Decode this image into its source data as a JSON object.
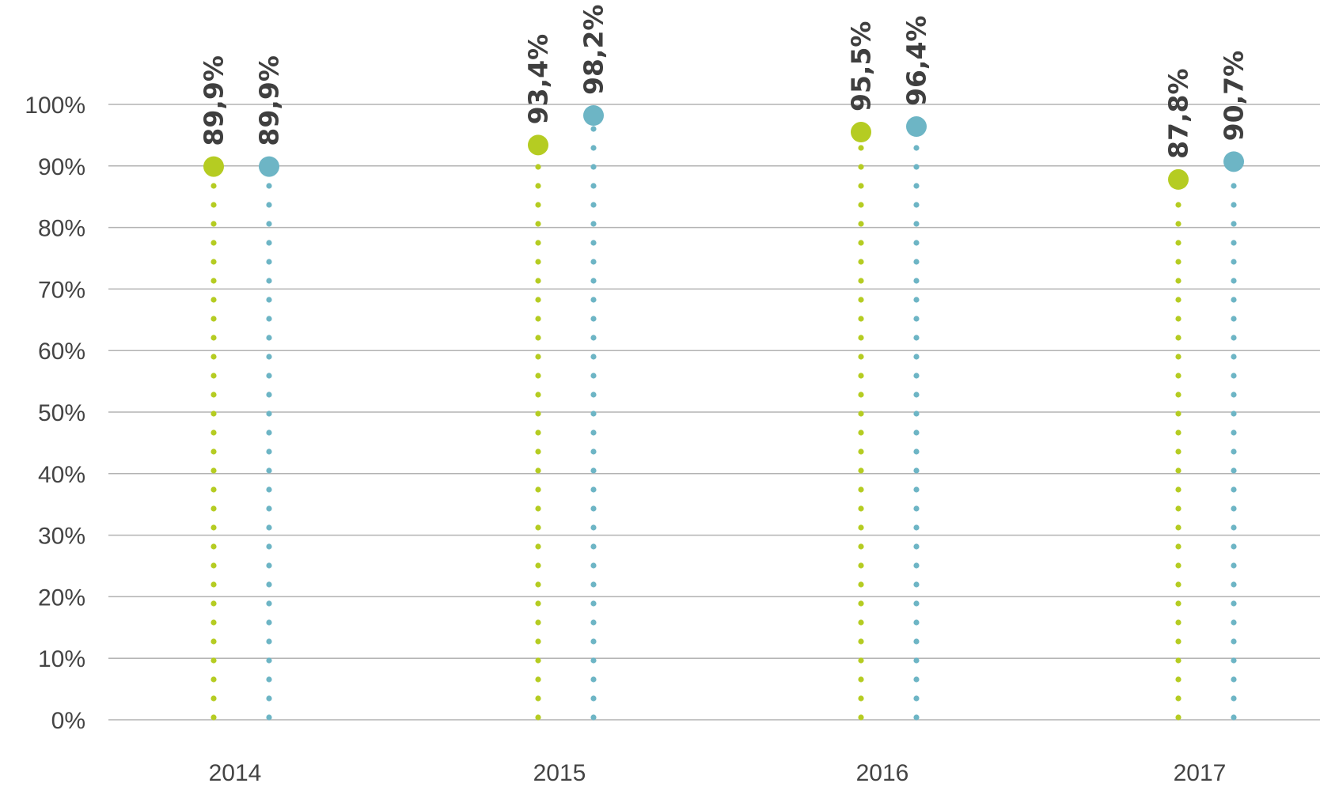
{
  "chart_data": {
    "type": "scatter",
    "categories": [
      "2014",
      "2015",
      "2016",
      "2017"
    ],
    "series": [
      {
        "color": "#b5cc22",
        "values": [
          89.9,
          93.4,
          95.5,
          87.8
        ],
        "labels": [
          "89,9%",
          "93,4%",
          "95,5%",
          "87,8%"
        ]
      },
      {
        "color": "#6db5c5",
        "values": [
          89.9,
          98.2,
          96.4,
          90.7
        ],
        "labels": [
          "89,9%",
          "98,2%",
          "96,4%",
          "90,7%"
        ]
      }
    ],
    "y_ticks": [
      "0%",
      "10%",
      "20%",
      "30%",
      "40%",
      "50%",
      "60%",
      "70%",
      "80%",
      "90%",
      "100%"
    ],
    "ylim": [
      0,
      100
    ],
    "grid": true,
    "gridline_color": "#b3b3b3",
    "xlabel": "",
    "ylabel": "",
    "title": ""
  }
}
